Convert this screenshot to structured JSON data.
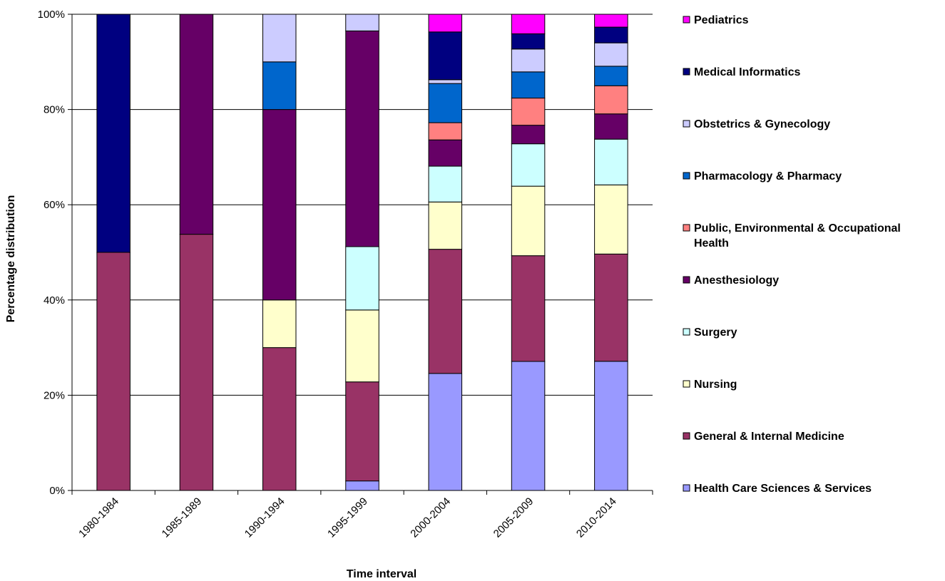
{
  "chart_data": {
    "type": "bar",
    "stacked": true,
    "normalized_percent": true,
    "title": "",
    "xlabel": "Time interval",
    "ylabel": "Percentage distribution",
    "ylim": [
      0,
      100
    ],
    "yticks": [
      "0%",
      "20%",
      "40%",
      "60%",
      "80%",
      "100%"
    ],
    "grid": true,
    "legend_position": "right",
    "categories": [
      "1980-1984",
      "1985-1989",
      "1990-1994",
      "1995-1999",
      "2000-2004",
      "2005-2009",
      "2010-2014"
    ],
    "series": [
      {
        "name": "Health Care Sciences & Services",
        "color": "#9999ff",
        "values": [
          0,
          0,
          0,
          2,
          24.5,
          27.1,
          27.1
        ]
      },
      {
        "name": "General & Internal Medicine",
        "color": "#993366",
        "values": [
          50,
          53.8,
          30,
          20.8,
          26.0,
          22.2,
          22.5
        ]
      },
      {
        "name": "Nursing",
        "color": "#ffffcc",
        "values": [
          0,
          0,
          10,
          15.1,
          9.9,
          14.6,
          14.5
        ]
      },
      {
        "name": "Surgery",
        "color": "#ccffff",
        "values": [
          0,
          0,
          0,
          13.3,
          7.5,
          8.9,
          9.6
        ]
      },
      {
        "name": "Anesthesiology",
        "color": "#660066",
        "values": [
          0,
          46.2,
          40,
          45.3,
          5.5,
          3.9,
          5.3
        ]
      },
      {
        "name": "Public, Environmental & Occupational Health",
        "color": "#ff8080",
        "values": [
          0,
          0,
          0,
          0,
          3.6,
          5.7,
          5.9
        ]
      },
      {
        "name": "Pharmacology & Pharmacy",
        "color": "#0066cc",
        "values": [
          0,
          0,
          10,
          0,
          8.2,
          5.5,
          4.1
        ]
      },
      {
        "name": "Obstetrics & Gynecology",
        "color": "#ccccff",
        "values": [
          0,
          0,
          10,
          3.5,
          0.8,
          4.8,
          4.9
        ]
      },
      {
        "name": "Medical Informatics",
        "color": "#000080",
        "values": [
          50,
          0,
          0,
          0,
          10.0,
          3.2,
          3.3
        ]
      },
      {
        "name": "Pediatrics",
        "color": "#ff00ff",
        "values": [
          0,
          0,
          0,
          0,
          3.7,
          4.1,
          2.7
        ]
      }
    ],
    "legend_order": [
      "Pediatrics",
      "Medical Informatics",
      "Obstetrics & Gynecology",
      "Pharmacology & Pharmacy",
      "Public, Environmental & Occupational Health",
      "Anesthesiology",
      "Surgery",
      "Nursing",
      "General & Internal Medicine",
      "Health Care Sciences & Services"
    ]
  }
}
